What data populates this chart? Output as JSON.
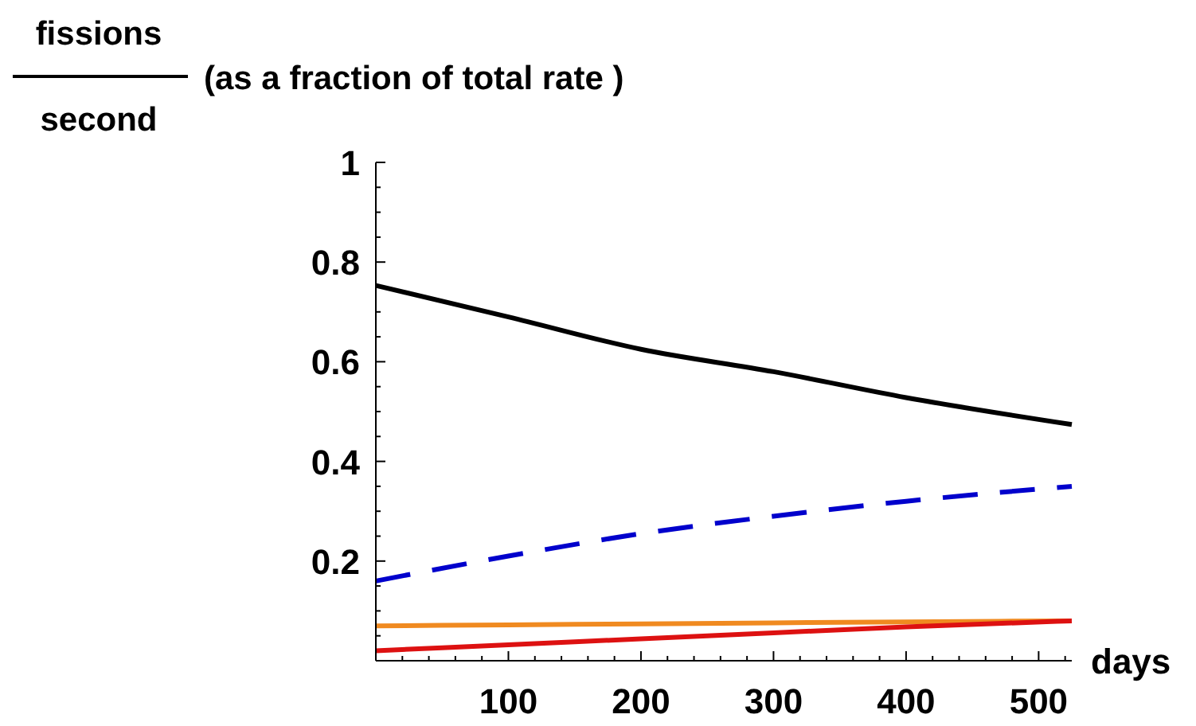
{
  "chart_data": {
    "type": "line",
    "ylabel": "(as a fraction of total rate )",
    "annotations": [
      "fissions",
      "second"
    ],
    "xlabel": "days",
    "x": [
      0,
      100,
      200,
      300,
      400,
      525
    ],
    "series": [
      {
        "color": "#000000",
        "values": [
          0.753,
          0.69,
          0.625,
          0.58,
          0.528,
          0.474
        ]
      },
      {
        "color": "#0000cc",
        "line_style": "dashed",
        "values": [
          0.16,
          0.21,
          0.255,
          0.29,
          0.32,
          0.35
        ]
      },
      {
        "color": "#f08a20",
        "values": [
          0.07,
          0.072,
          0.074,
          0.076,
          0.078,
          0.08
        ]
      },
      {
        "color": "#dd1111",
        "values": [
          0.02,
          0.032,
          0.044,
          0.056,
          0.068,
          0.08
        ]
      }
    ],
    "xlim": [
      0,
      525
    ],
    "ylim": [
      0,
      1
    ],
    "xticks": [
      {
        "value": 20,
        "label": null
      },
      {
        "value": 40,
        "label": null
      },
      {
        "value": 60,
        "label": null
      },
      {
        "value": 80,
        "label": null
      },
      100,
      {
        "value": 120,
        "label": null
      },
      {
        "value": 140,
        "label": null
      },
      {
        "value": 160,
        "label": null
      },
      {
        "value": 180,
        "label": null
      },
      200,
      {
        "value": 220,
        "label": null
      },
      {
        "value": 240,
        "label": null
      },
      {
        "value": 260,
        "label": null
      },
      {
        "value": 280,
        "label": null
      },
      300,
      {
        "value": 320,
        "label": null
      },
      {
        "value": 340,
        "label": null
      },
      {
        "value": 360,
        "label": null
      },
      {
        "value": 380,
        "label": null
      },
      400,
      {
        "value": 420,
        "label": null
      },
      {
        "value": 440,
        "label": null
      },
      {
        "value": 460,
        "label": null
      },
      {
        "value": 480,
        "label": null
      },
      500,
      {
        "value": 520,
        "label": null
      }
    ],
    "yticks": [
      {
        "value": 0.05,
        "label": null
      },
      {
        "value": 0.1,
        "label": null
      },
      {
        "value": 0.15,
        "label": null
      },
      0.2,
      {
        "value": 0.25,
        "label": null
      },
      {
        "value": 0.3,
        "label": null
      },
      {
        "value": 0.35,
        "label": null
      },
      0.4,
      {
        "value": 0.45,
        "label": null
      },
      {
        "value": 0.5,
        "label": null
      },
      {
        "value": 0.55,
        "label": null
      },
      0.6,
      {
        "value": 0.65,
        "label": null
      },
      {
        "value": 0.7,
        "label": null
      },
      {
        "value": 0.75,
        "label": null
      },
      0.8,
      {
        "value": 0.85,
        "label": null
      },
      {
        "value": 0.9,
        "label": null
      },
      {
        "value": 0.95,
        "label": null
      },
      1
    ],
    "grid": false
  }
}
